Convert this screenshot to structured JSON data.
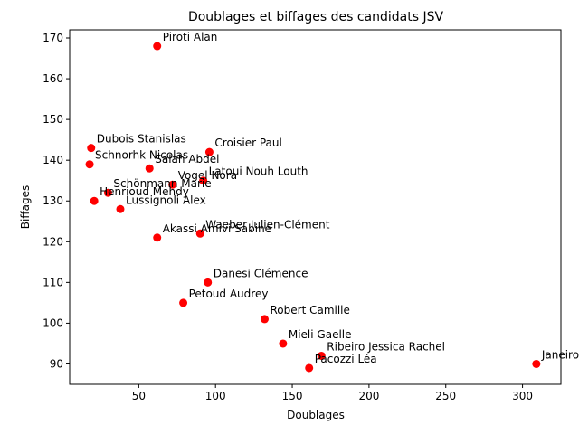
{
  "chart_data": {
    "type": "scatter",
    "title": "Doublages et biffages des candidats JSV",
    "xlabel": "Doublages",
    "ylabel": "Biffages",
    "xlim": [
      5,
      325
    ],
    "ylim": [
      85,
      172
    ],
    "xticks": [
      50,
      100,
      150,
      200,
      250,
      300
    ],
    "yticks": [
      90,
      100,
      110,
      120,
      130,
      140,
      150,
      160,
      170
    ],
    "grid": false,
    "legend": "none",
    "marker_color": "#ff0000",
    "points": [
      {
        "label": "Piroti Alan",
        "x": 62,
        "y": 168
      },
      {
        "label": "Dubois Stanislas",
        "x": 19,
        "y": 143
      },
      {
        "label": "Croisier Paul",
        "x": 96,
        "y": 142
      },
      {
        "label": "Schnorhk Nicolas",
        "x": 18,
        "y": 139
      },
      {
        "label": "Salah Abdel",
        "x": 57,
        "y": 138
      },
      {
        "label": "Latoui Nouh Louth",
        "x": 92,
        "y": 135
      },
      {
        "label": "Vogel Nora",
        "x": 72,
        "y": 134
      },
      {
        "label": "Schönmann Marie",
        "x": 30,
        "y": 132
      },
      {
        "label": "Henrioud Mehdy",
        "x": 21,
        "y": 130
      },
      {
        "label": "Lussignoli Alex",
        "x": 38,
        "y": 128
      },
      {
        "label": "Waeber Julien-Clément",
        "x": 90,
        "y": 122
      },
      {
        "label": "Akassi Amivi Sabine",
        "x": 62,
        "y": 121
      },
      {
        "label": "Danesi Clémence",
        "x": 95,
        "y": 110
      },
      {
        "label": "Petoud Audrey",
        "x": 79,
        "y": 105
      },
      {
        "label": "Robert Camille",
        "x": 132,
        "y": 101
      },
      {
        "label": "Mieli Gaelle",
        "x": 144,
        "y": 95
      },
      {
        "label": "Ribeiro Jessica Rachel",
        "x": 169,
        "y": 92
      },
      {
        "label": "Janeiro",
        "x": 309,
        "y": 90
      },
      {
        "label": "Pacozzi Léa",
        "x": 161,
        "y": 89
      }
    ]
  }
}
